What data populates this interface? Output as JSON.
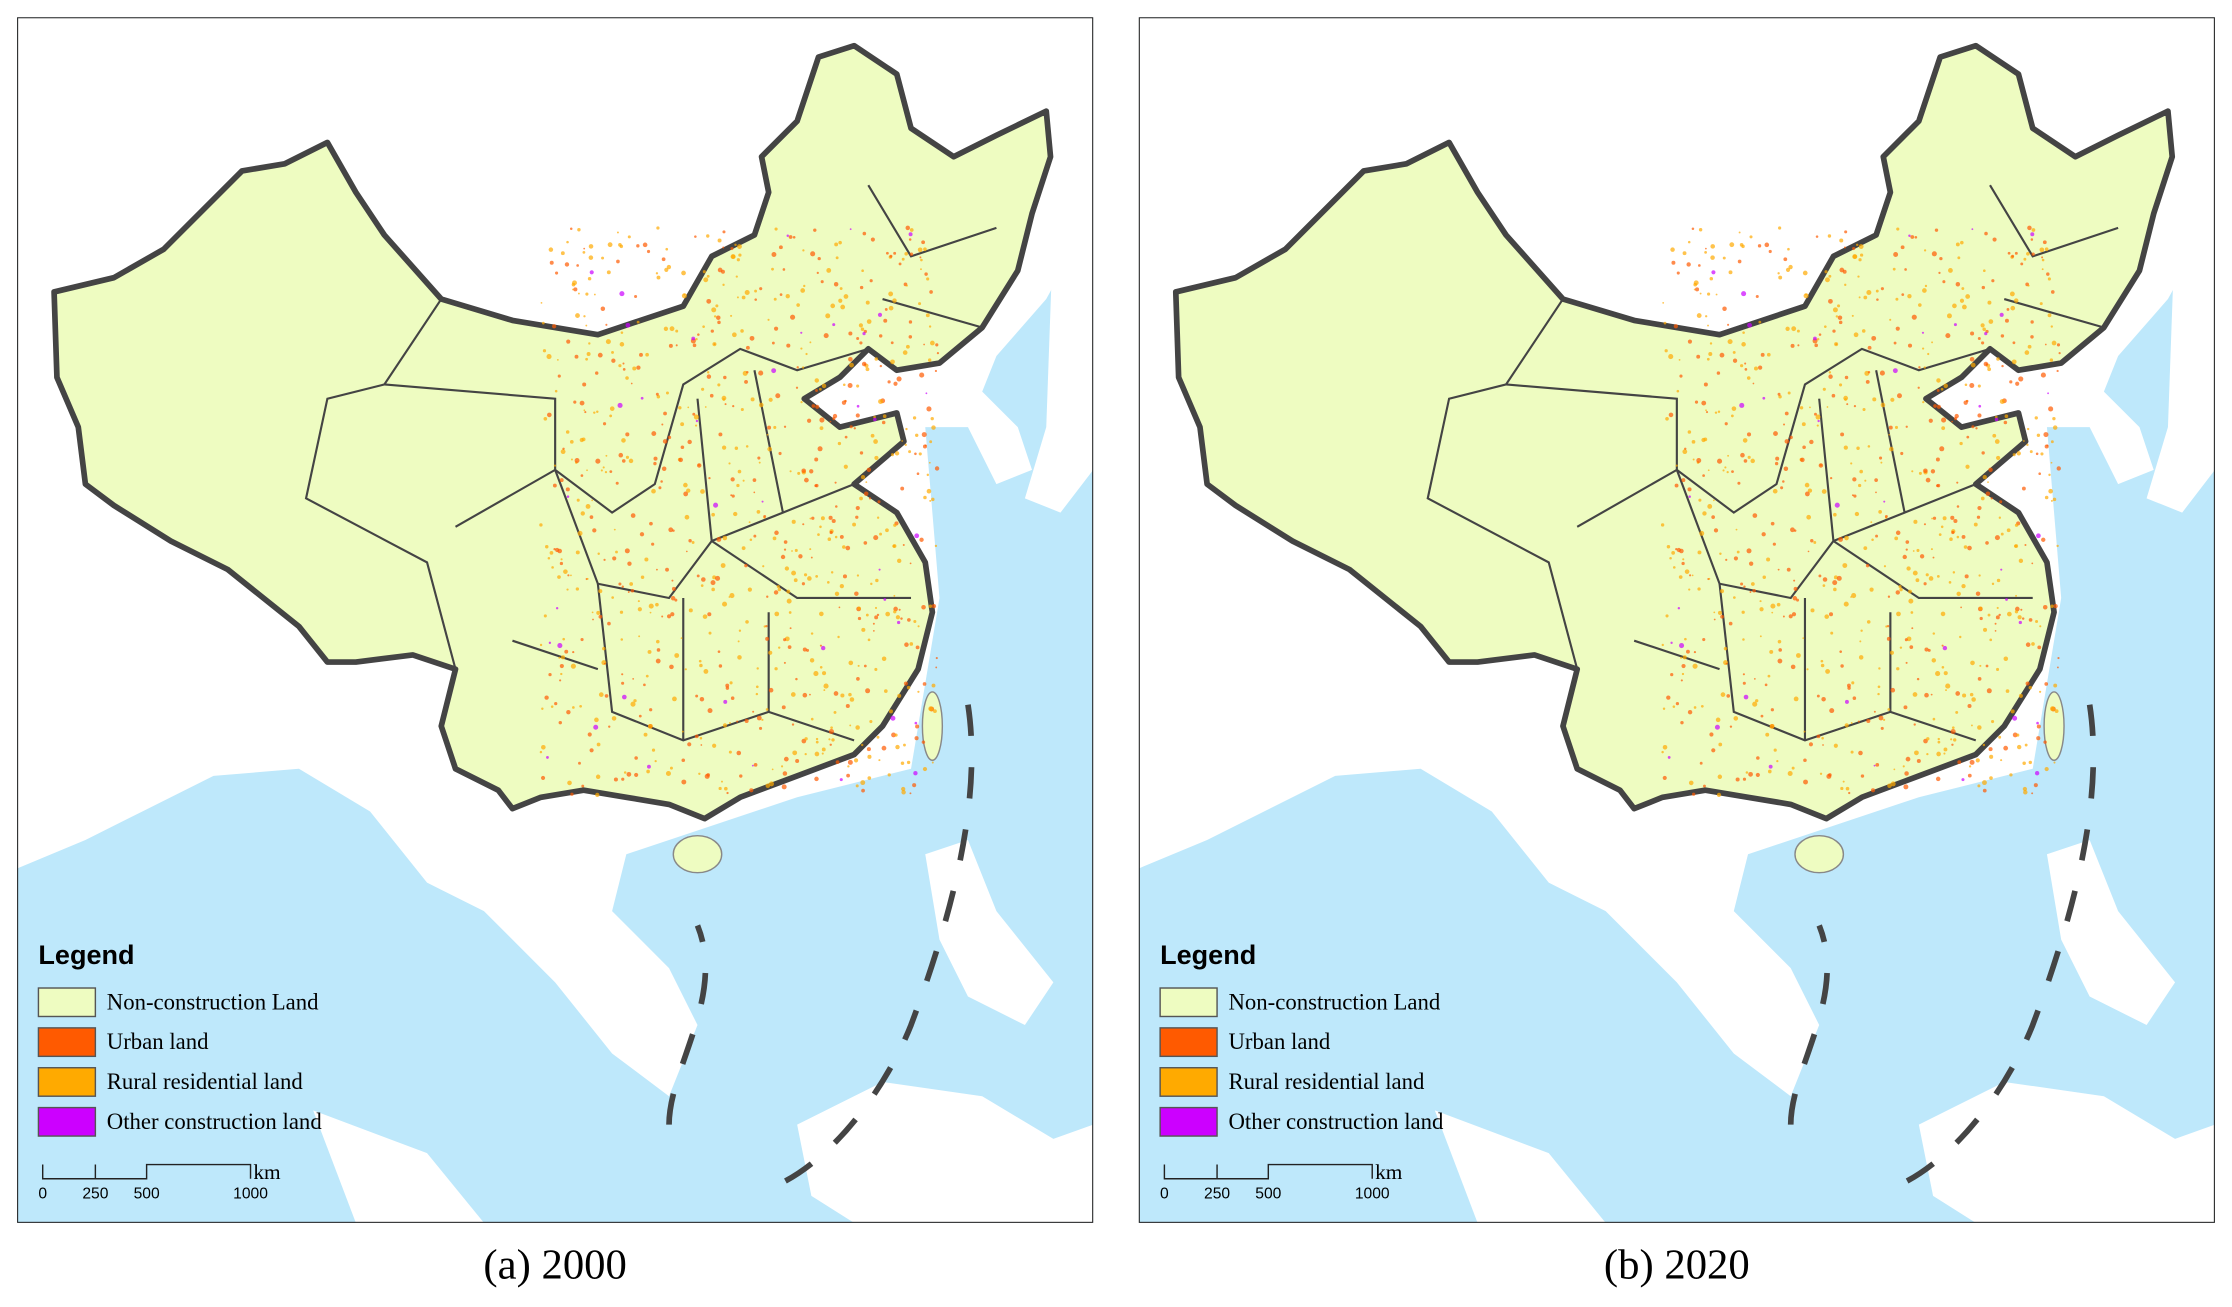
{
  "panels": [
    {
      "caption": "(a) 2000",
      "legend": {
        "title": "Legend",
        "items": [
          {
            "label": "Non-construction Land",
            "color": "#eefcc1"
          },
          {
            "label": "Urban land",
            "color": "#ff5a00"
          },
          {
            "label": "Rural residential land",
            "color": "#ffaa00"
          },
          {
            "label": "Other construction land",
            "color": "#cc00ff"
          }
        ]
      },
      "scale_bar": {
        "labels": [
          "0",
          "250",
          "500",
          "1000"
        ],
        "unit": "km"
      }
    },
    {
      "caption": "(b) 2020",
      "legend": {
        "title": "Legend",
        "items": [
          {
            "label": "Non-construction Land",
            "color": "#eefcc1"
          },
          {
            "label": "Urban land",
            "color": "#ff5a00"
          },
          {
            "label": "Rural residential land",
            "color": "#ffaa00"
          },
          {
            "label": "Other construction land",
            "color": "#cc00ff"
          }
        ]
      },
      "scale_bar": {
        "labels": [
          "0",
          "250",
          "500",
          "1000"
        ],
        "unit": "km"
      }
    }
  ]
}
